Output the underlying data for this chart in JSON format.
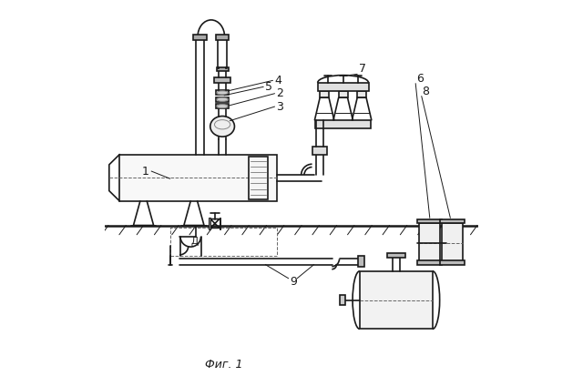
{
  "bg_color": "#ffffff",
  "line_color": "#1a1a1a",
  "line_width": 1.2,
  "thin_line": 0.7,
  "thick_line": 1.8,
  "fig_label": [
    0.32,
    0.028
  ],
  "fig_label_text": "Фиг. 1"
}
